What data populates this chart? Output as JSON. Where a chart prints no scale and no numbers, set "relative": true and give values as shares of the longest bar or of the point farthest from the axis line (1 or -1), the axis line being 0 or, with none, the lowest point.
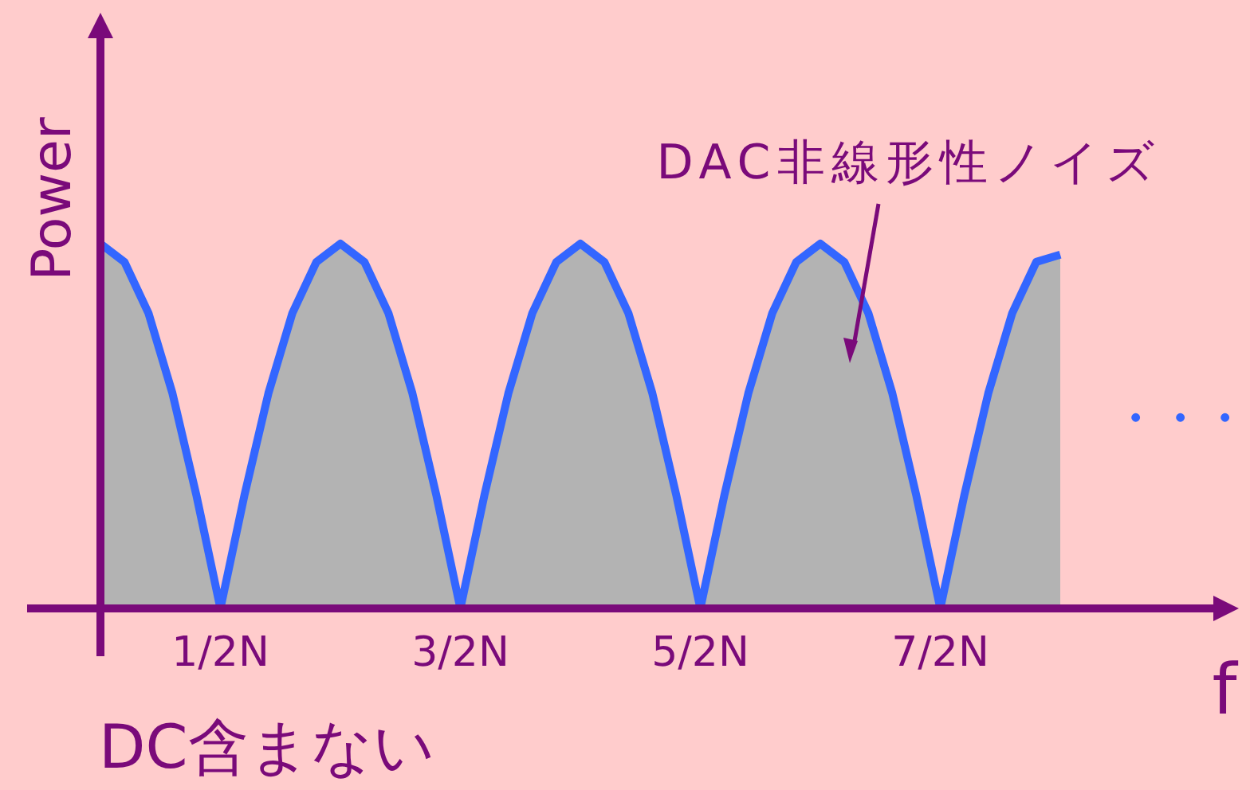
{
  "chart_data": {
    "type": "area",
    "relative": true,
    "xlabel": "f",
    "ylabel": "Power",
    "categories": [
      null,
      null,
      null,
      null,
      null,
      "1/2N",
      null,
      null,
      null,
      null,
      null,
      null,
      null,
      null,
      null,
      "3/2N",
      null,
      null,
      null,
      null,
      null,
      null,
      null,
      null,
      null,
      "5/2N",
      null,
      null,
      null,
      null,
      null,
      null,
      null,
      null,
      null,
      "7/2N",
      null,
      null,
      null,
      null,
      null
    ],
    "series": [
      {
        "color": "#3366ff",
        "values": [
          1,
          0.95,
          0.81,
          0.59,
          0.31,
          0,
          0.31,
          0.59,
          0.81,
          0.95,
          1,
          0.95,
          0.81,
          0.59,
          0.31,
          0,
          0.31,
          0.59,
          0.81,
          0.95,
          1,
          0.95,
          0.81,
          0.59,
          0.31,
          0,
          0.31,
          0.59,
          0.81,
          0.95,
          1,
          0.95,
          0.81,
          0.59,
          0.31,
          0,
          0.31,
          0.59,
          0.81,
          0.95,
          0.97
        ]
      }
    ],
    "grid": false,
    "annotations": [
      "DAC非線形性ノイズ",
      "DC含まない",
      "・・・"
    ]
  }
}
